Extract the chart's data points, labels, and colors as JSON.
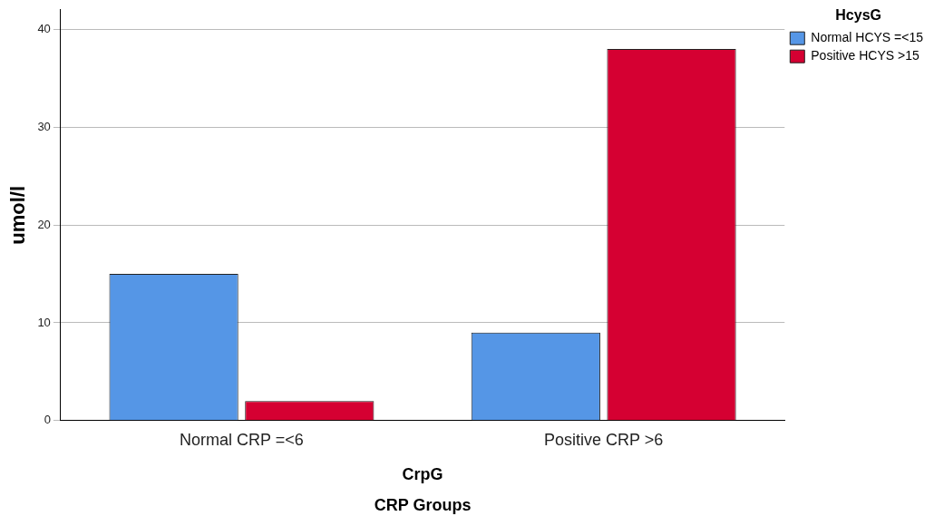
{
  "chart_data": {
    "type": "bar",
    "categories": [
      "Normal CRP =<6",
      "Positive CRP >6"
    ],
    "series": [
      {
        "name": "Normal HCYS =<15",
        "color": "#5596e6",
        "values": [
          15,
          9
        ]
      },
      {
        "name": "Positive HCYS >15",
        "color": "#d50032",
        "values": [
          2,
          38
        ]
      }
    ],
    "xlabel": "CrpG",
    "ylabel": "umol/l",
    "legend_title": "HcysG",
    "annotations": [
      "CRP Groups"
    ],
    "ylim": [
      0,
      42
    ],
    "yticks": [
      0,
      10,
      20,
      30,
      40
    ],
    "grid": "y",
    "legend": "top right"
  }
}
